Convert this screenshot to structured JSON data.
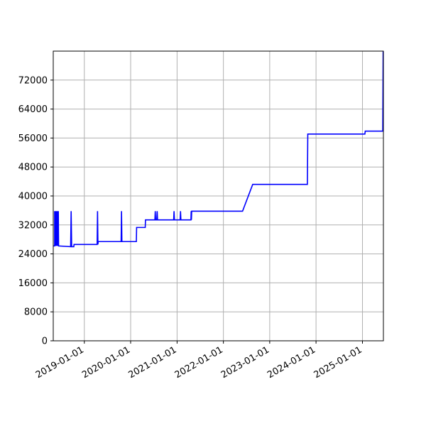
{
  "chart_data": {
    "type": "line",
    "title": "",
    "xlabel": "",
    "ylabel": "",
    "grid": true,
    "xlim": [
      "2018-05-01",
      "2025-06-15"
    ],
    "ylim": [
      0,
      80000
    ],
    "x_ticks": [
      "2019-01-01",
      "2020-01-01",
      "2021-01-01",
      "2022-01-01",
      "2023-01-01",
      "2024-01-01",
      "2025-01-01"
    ],
    "y_ticks": [
      0,
      8000,
      16000,
      24000,
      32000,
      40000,
      48000,
      56000,
      64000,
      72000
    ],
    "y_tick_labels": [
      "0",
      "8000",
      "16000",
      "24000",
      "32000",
      "40000",
      "48000",
      "56000",
      "64000",
      "72000"
    ],
    "colors": {
      "series": "#0000ff",
      "grid": "#b0b0b0"
    },
    "series": [
      {
        "color": "#0000ff",
        "points": [
          [
            "2018-05-01",
            26200
          ],
          [
            "2018-05-12",
            26200
          ],
          [
            "2018-05-12",
            35800
          ],
          [
            "2018-05-14",
            26200
          ],
          [
            "2018-05-18",
            35800
          ],
          [
            "2018-05-20",
            26200
          ],
          [
            "2018-05-24",
            35800
          ],
          [
            "2018-05-26",
            26200
          ],
          [
            "2018-05-30",
            35800
          ],
          [
            "2018-06-02",
            26200
          ],
          [
            "2018-06-05",
            35800
          ],
          [
            "2018-06-08",
            26200
          ],
          [
            "2018-06-10",
            35800
          ],
          [
            "2018-06-12",
            26200
          ],
          [
            "2018-09-15",
            26000
          ],
          [
            "2018-09-19",
            35800
          ],
          [
            "2018-09-23",
            26000
          ],
          [
            "2018-10-10",
            26000
          ],
          [
            "2018-10-12",
            26600
          ],
          [
            "2019-03-20",
            26600
          ],
          [
            "2019-03-22",
            26600
          ],
          [
            "2019-04-12",
            26600
          ],
          [
            "2019-04-15",
            35800
          ],
          [
            "2019-04-18",
            26600
          ],
          [
            "2019-04-20",
            27400
          ],
          [
            "2019-10-18",
            27400
          ],
          [
            "2019-10-21",
            35800
          ],
          [
            "2019-10-24",
            27400
          ],
          [
            "2020-02-15",
            27400
          ],
          [
            "2020-02-17",
            31300
          ],
          [
            "2020-04-25",
            31300
          ],
          [
            "2020-04-27",
            33400
          ],
          [
            "2020-07-10",
            33400
          ],
          [
            "2020-07-13",
            35800
          ],
          [
            "2020-07-16",
            33400
          ],
          [
            "2020-07-25",
            33400
          ],
          [
            "2020-07-28",
            35800
          ],
          [
            "2020-07-31",
            33400
          ],
          [
            "2020-12-05",
            33400
          ],
          [
            "2020-12-08",
            35800
          ],
          [
            "2020-12-11",
            33400
          ],
          [
            "2021-01-25",
            33400
          ],
          [
            "2021-01-28",
            35800
          ],
          [
            "2021-01-31",
            33400
          ],
          [
            "2021-04-20",
            33400
          ],
          [
            "2021-04-22",
            35800
          ],
          [
            "2021-04-24",
            33400
          ],
          [
            "2021-04-26",
            35800
          ],
          [
            "2022-06-01",
            35800
          ],
          [
            "2022-08-20",
            43200
          ],
          [
            "2023-10-25",
            43200
          ],
          [
            "2023-10-28",
            57100
          ],
          [
            "2025-01-20",
            57100
          ],
          [
            "2025-01-23",
            57900
          ],
          [
            "2025-06-10",
            57900
          ],
          [
            "2025-06-13",
            80000
          ]
        ]
      }
    ]
  }
}
